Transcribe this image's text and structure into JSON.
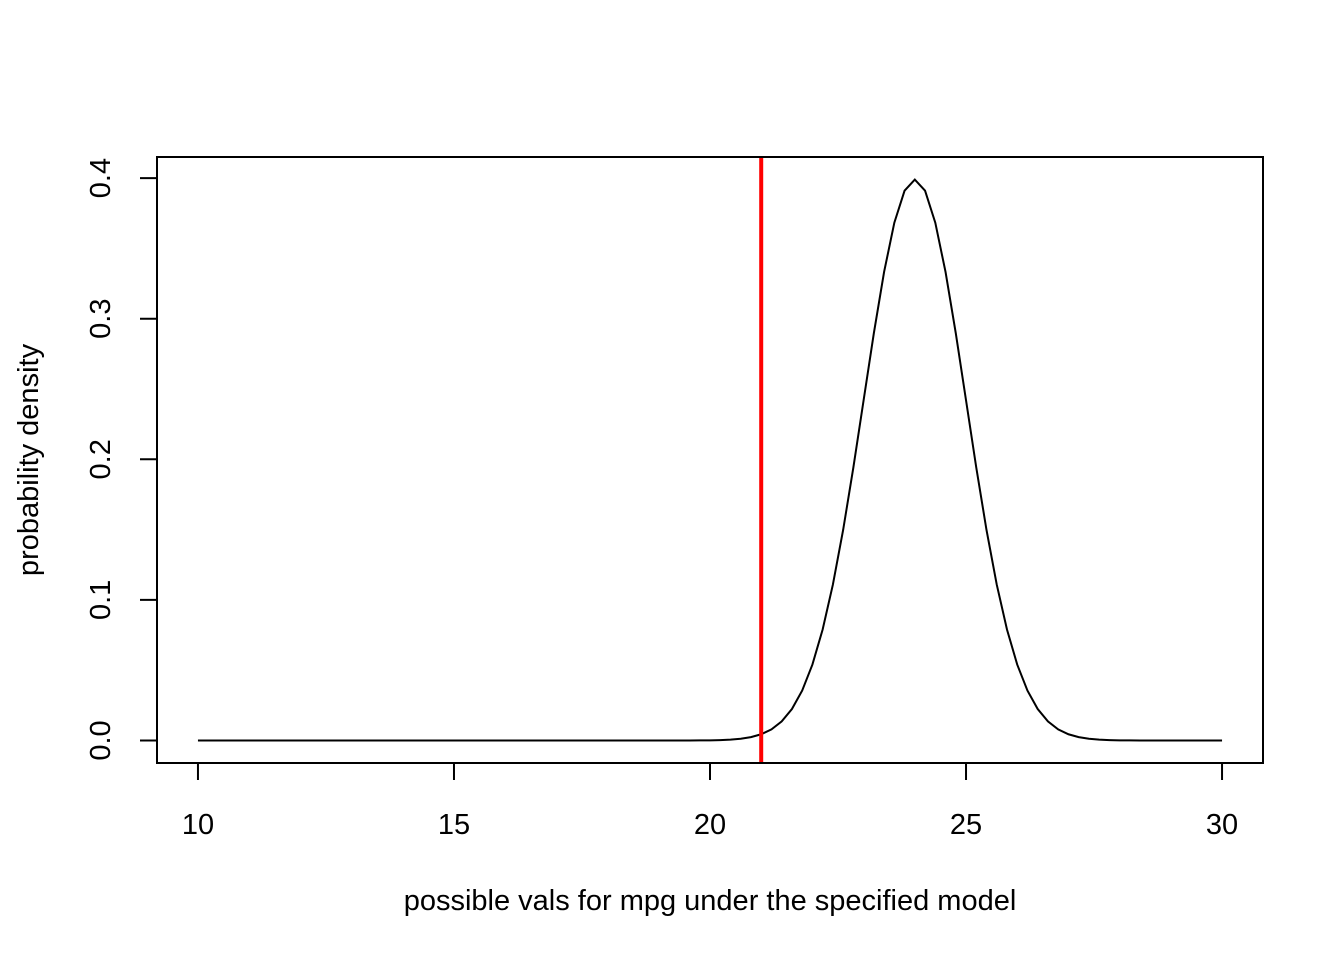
{
  "chart_data": {
    "type": "line",
    "title": "",
    "xlabel": "possible vals for mpg under the specified model",
    "ylabel": "probability density",
    "xlim": [
      9.2,
      30.8
    ],
    "ylim": [
      -0.016,
      0.415
    ],
    "x_ticks": [
      10,
      15,
      20,
      25,
      30
    ],
    "y_ticks": [
      0.0,
      0.1,
      0.2,
      0.3,
      0.4
    ],
    "x_tick_labels": [
      "10",
      "15",
      "20",
      "25",
      "30"
    ],
    "y_tick_labels": [
      "0.0",
      "0.1",
      "0.2",
      "0.3",
      "0.4"
    ],
    "grid": false,
    "legend": "none",
    "series": [
      {
        "color": "#000000",
        "distribution": "normal",
        "mean": 24,
        "sd": 1,
        "x_range": [
          10,
          30
        ],
        "n_points": 101
      }
    ],
    "vertical_lines": [
      {
        "x": 21,
        "color": "#ff0000"
      }
    ]
  }
}
